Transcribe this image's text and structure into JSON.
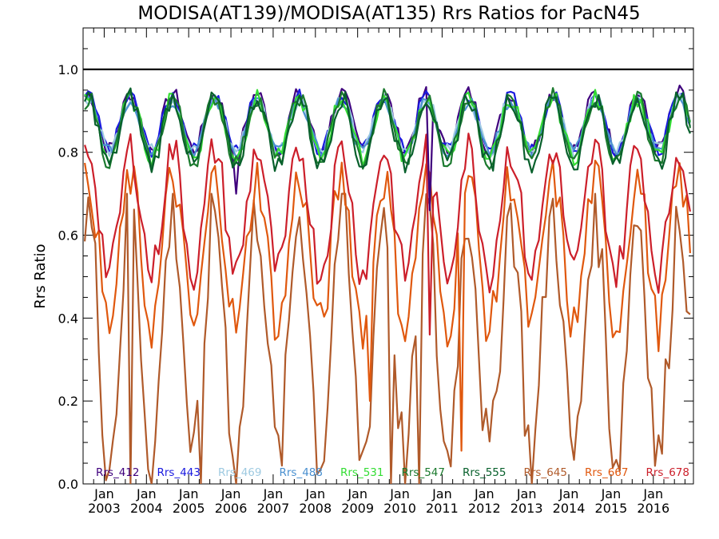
{
  "chart_data": {
    "type": "line",
    "title": "MODISA(AT139)/MODISA(AT135)  Rrs Ratios for PacN45",
    "xlabel": "",
    "ylabel": "Rrs Ratio",
    "xlim": [
      2002.5,
      2016.95
    ],
    "ylim": [
      0.0,
      1.1
    ],
    "y_ticks": [
      0.0,
      0.2,
      0.4,
      0.6,
      0.8,
      1.0
    ],
    "y_tick_labels": [
      "0.0",
      "0.2",
      "0.4",
      "0.6",
      "0.8",
      "1.0"
    ],
    "x_ticks": [
      2003,
      2004,
      2005,
      2006,
      2007,
      2008,
      2009,
      2010,
      2011,
      2012,
      2013,
      2014,
      2015,
      2016
    ],
    "x_tick_month": "Jan",
    "x_tick_years": [
      "2003",
      "2004",
      "2005",
      "2006",
      "2007",
      "2008",
      "2009",
      "2010",
      "2011",
      "2012",
      "2013",
      "2014",
      "2015",
      "2016"
    ],
    "reference_line": {
      "y": 1.0,
      "color": "#000000"
    },
    "legend_position": "bottom",
    "series": [
      {
        "name": "Rrs_412",
        "color": "#3f007d",
        "amp": 0.9,
        "noise": 0.02,
        "dips": [
          [
            2010.7,
            0.66
          ],
          [
            2006.12,
            0.7
          ]
        ],
        "values": []
      },
      {
        "name": "Rrs_443",
        "color": "#1a1adf",
        "amp": 0.88,
        "noise": 0.018,
        "dips": [],
        "values": []
      },
      {
        "name": "Rrs_469",
        "color": "#9ecae1",
        "amp": 0.84,
        "noise": 0.018,
        "dips": [],
        "values": []
      },
      {
        "name": "Rrs_488",
        "color": "#4a90d0",
        "amp": 0.82,
        "noise": 0.015,
        "dips": [],
        "values": []
      },
      {
        "name": "Rrs_531",
        "color": "#33dd33",
        "amp": 0.95,
        "noise": 0.022,
        "dips": [],
        "values": []
      },
      {
        "name": "Rrs_547",
        "color": "#1b7a2e",
        "amp": 1.05,
        "noise": 0.022,
        "dips": [],
        "values": []
      },
      {
        "name": "Rrs_555",
        "color": "#08602c",
        "amp": 1.1,
        "noise": 0.025,
        "dips": [],
        "values": []
      },
      {
        "name": "Rrs_645",
        "color": "#b05a2a",
        "amp": 1.0,
        "noise": 0.1,
        "dips": [
          [
            2003.6,
            0.0
          ],
          [
            2005.3,
            0.0
          ],
          [
            2009.8,
            0.0
          ],
          [
            2010.45,
            0.0
          ]
        ],
        "values": []
      },
      {
        "name": "Rrs_667",
        "color": "#e0580e",
        "amp": 1.0,
        "noise": 0.06,
        "dips": [
          [
            2009.3,
            0.2
          ],
          [
            2011.45,
            0.08
          ]
        ],
        "values": []
      },
      {
        "name": "Rrs_678",
        "color": "#cc1f2a",
        "amp": 1.0,
        "noise": 0.05,
        "dips": [
          [
            2010.67,
            0.36
          ]
        ],
        "values": []
      }
    ]
  }
}
